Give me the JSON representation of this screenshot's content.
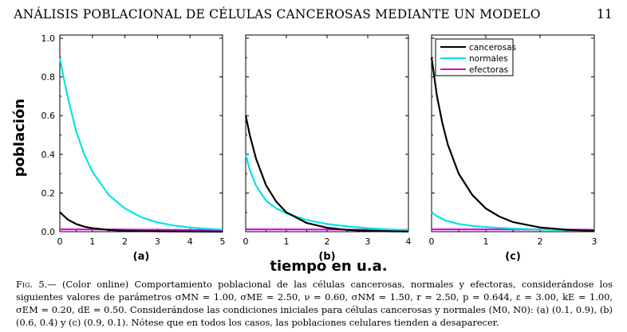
{
  "header": {
    "title": "ANÁLISIS POBLACIONAL DE CÉLULAS CANCEROSAS MEDIANTE UN MODELO",
    "page_number": "11"
  },
  "figure": {
    "ylabel": "población",
    "xlabel": "tiempo en u.a.",
    "legend": [
      "cancerosas",
      "normales",
      "efectoras"
    ],
    "colors": {
      "cancerosas": "#000000",
      "normales": "#00e5e5",
      "efectoras": "#e000e0"
    },
    "y_ticks": [
      "0.0",
      "0.2",
      "0.4",
      "0.6",
      "0.8",
      "1.0"
    ],
    "panels": [
      {
        "label": "(a)",
        "x_ticks": [
          "0",
          "1",
          "2",
          "3",
          "4",
          "5"
        ]
      },
      {
        "label": "(b)",
        "x_ticks": [
          "0",
          "1",
          "2",
          "3",
          "4"
        ]
      },
      {
        "label": "(c)",
        "x_ticks": [
          "0",
          "1",
          "2",
          "3"
        ]
      }
    ]
  },
  "chart_data": [
    {
      "type": "line",
      "title": "(a)",
      "xlabel": "tiempo en u.a.",
      "ylabel": "población",
      "xlim": [
        0,
        5
      ],
      "ylim": [
        0,
        1.0
      ],
      "legend": "none",
      "series": [
        {
          "name": "cancerosas",
          "x": [
            0,
            0.1,
            0.25,
            0.5,
            0.75,
            1,
            1.5,
            2,
            2.5,
            3,
            4,
            5
          ],
          "values": [
            0.1,
            0.085,
            0.062,
            0.04,
            0.026,
            0.018,
            0.009,
            0.005,
            0.003,
            0.002,
            0.001,
            0.0
          ]
        },
        {
          "name": "normales",
          "x": [
            0,
            0.1,
            0.25,
            0.5,
            0.75,
            1,
            1.5,
            2,
            2.5,
            3,
            3.5,
            4,
            4.5,
            5
          ],
          "values": [
            0.9,
            0.81,
            0.69,
            0.52,
            0.4,
            0.31,
            0.19,
            0.12,
            0.075,
            0.048,
            0.032,
            0.022,
            0.015,
            0.011
          ]
        },
        {
          "name": "efectoras",
          "x": [
            0,
            1,
            2,
            3,
            4,
            5
          ],
          "values": [
            0.012,
            0.012,
            0.011,
            0.01,
            0.009,
            0.008
          ]
        }
      ]
    },
    {
      "type": "line",
      "title": "(b)",
      "xlabel": "tiempo en u.a.",
      "ylabel": "población",
      "xlim": [
        0,
        4
      ],
      "ylim": [
        0,
        1.0
      ],
      "legend": "none",
      "series": [
        {
          "name": "cancerosas",
          "x": [
            0,
            0.1,
            0.25,
            0.5,
            0.75,
            1,
            1.5,
            2,
            2.5,
            3,
            3.5,
            4
          ],
          "values": [
            0.6,
            0.5,
            0.38,
            0.24,
            0.155,
            0.1,
            0.045,
            0.02,
            0.009,
            0.004,
            0.002,
            0.001
          ]
        },
        {
          "name": "normales",
          "x": [
            0,
            0.1,
            0.25,
            0.5,
            0.75,
            1,
            1.5,
            2,
            2.5,
            3,
            3.5,
            4
          ],
          "values": [
            0.4,
            0.32,
            0.24,
            0.16,
            0.12,
            0.095,
            0.06,
            0.04,
            0.027,
            0.018,
            0.012,
            0.008
          ]
        },
        {
          "name": "efectoras",
          "x": [
            0,
            1,
            2,
            3,
            4
          ],
          "values": [
            0.012,
            0.012,
            0.011,
            0.01,
            0.009
          ]
        }
      ]
    },
    {
      "type": "line",
      "title": "(c)",
      "xlabel": "tiempo en u.a.",
      "ylabel": "población",
      "xlim": [
        0,
        3
      ],
      "ylim": [
        0,
        1.0
      ],
      "legend": "top-left",
      "series": [
        {
          "name": "cancerosas",
          "x": [
            0,
            0.1,
            0.2,
            0.3,
            0.5,
            0.75,
            1,
            1.25,
            1.5,
            2,
            2.5,
            3
          ],
          "values": [
            0.9,
            0.7,
            0.56,
            0.45,
            0.3,
            0.19,
            0.12,
            0.078,
            0.05,
            0.022,
            0.01,
            0.005
          ]
        },
        {
          "name": "normales",
          "x": [
            0,
            0.1,
            0.25,
            0.5,
            0.75,
            1,
            1.5,
            2,
            2.5,
            3
          ],
          "values": [
            0.1,
            0.08,
            0.058,
            0.04,
            0.03,
            0.024,
            0.016,
            0.011,
            0.008,
            0.006
          ]
        },
        {
          "name": "efectoras",
          "x": [
            0,
            1,
            2,
            3
          ],
          "values": [
            0.012,
            0.012,
            0.011,
            0.01
          ]
        }
      ]
    }
  ],
  "caption": {
    "fig_label": "Fig. 5.—",
    "text": " (Color online) Comportamiento poblacional de las células cancerosas, normales y efectoras, considerándose los siguientes valores de parámetros σMN = 1.00, σME = 2.50, ν = 0.60, σNM = 1.50, r = 2.50, p = 0.644, ε = 3.00, kE = 1.00, σEM = 0.20, dE = 0.50. Considerándose las condiciones iniciales para células cancerosas y normales (M0, N0): (a) (0.1, 0.9), (b) (0.6, 0.4) y (c) (0.9, 0.1). Nótese que en todos los casos, las poblaciones celulares tienden a desaparecer."
  }
}
